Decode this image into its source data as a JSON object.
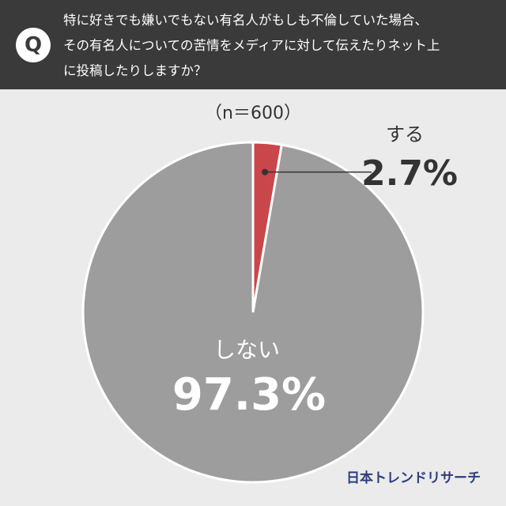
{
  "chart_data": {
    "type": "pie",
    "question_marker": "Q",
    "title": [
      "特に好きでも嫌いでもない有名人がもしも不倫していた場合、",
      "その有名人についての苦情をメディアに対して伝えたりネット上",
      "に投稿したりしますか？"
    ],
    "note": "（n＝600）",
    "categories": [
      "する",
      "しない"
    ],
    "values": [
      2.7,
      97.3
    ],
    "value_labels": [
      "2.7%",
      "97.3%"
    ],
    "colors": [
      "#c9474a",
      "#9d9d9d"
    ],
    "source": "日本トレンドリサーチ"
  }
}
